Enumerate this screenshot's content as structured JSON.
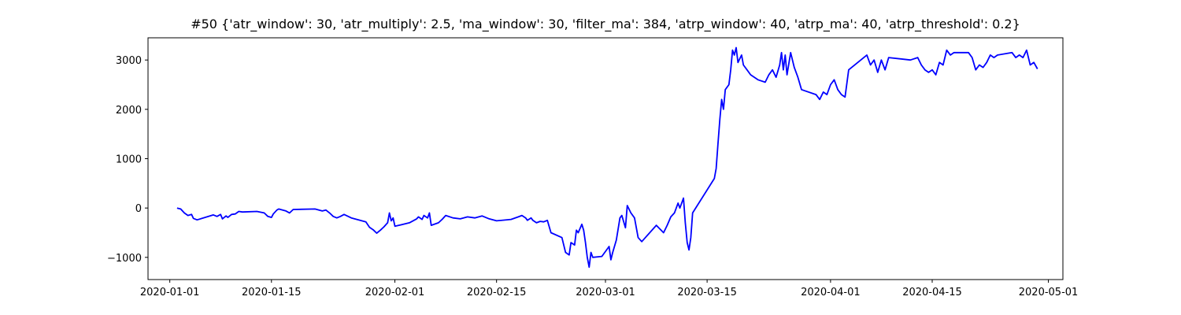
{
  "chart_data": {
    "type": "line",
    "title": "#50 {'atr_window': 30, 'atr_multiply': 2.5, 'ma_window': 30, 'filter_ma': 384, 'atrp_window': 40, 'atrp_ma': 40, 'atrp_threshold': 0.2}",
    "xlabel": "",
    "ylabel": "",
    "x_axis": "date",
    "xlim": [
      "2019-12-29",
      "2020-05-03"
    ],
    "ylim": [
      -1450,
      3450
    ],
    "xticks": [
      "2020-01-01",
      "2020-01-15",
      "2020-02-01",
      "2020-02-15",
      "2020-03-01",
      "2020-03-15",
      "2020-04-01",
      "2020-04-15",
      "2020-05-01"
    ],
    "yticks": [
      -1000,
      0,
      1000,
      2000,
      3000
    ],
    "grid": false,
    "series": [
      {
        "color": "#0000ff",
        "points": [
          [
            "2020-01-02",
            0
          ],
          [
            "2020-01-02T12:00",
            -20
          ],
          [
            "2020-01-03",
            -100
          ],
          [
            "2020-01-03T12:00",
            -150
          ],
          [
            "2020-01-04",
            -130
          ],
          [
            "2020-01-04T06:00",
            -210
          ],
          [
            "2020-01-04T18:00",
            -240
          ],
          [
            "2020-01-07",
            -140
          ],
          [
            "2020-01-07T12:00",
            -170
          ],
          [
            "2020-01-08",
            -130
          ],
          [
            "2020-01-08T06:00",
            -220
          ],
          [
            "2020-01-08T18:00",
            -160
          ],
          [
            "2020-01-09",
            -190
          ],
          [
            "2020-01-09T12:00",
            -130
          ],
          [
            "2020-01-10",
            -120
          ],
          [
            "2020-01-10T12:00",
            -70
          ],
          [
            "2020-01-11",
            -80
          ],
          [
            "2020-01-13",
            -70
          ],
          [
            "2020-01-14",
            -100
          ],
          [
            "2020-01-14T12:00",
            -170
          ],
          [
            "2020-01-15",
            -190
          ],
          [
            "2020-01-15T06:00",
            -120
          ],
          [
            "2020-01-15T18:00",
            -40
          ],
          [
            "2020-01-16",
            -20
          ],
          [
            "2020-01-17",
            -60
          ],
          [
            "2020-01-17T12:00",
            -100
          ],
          [
            "2020-01-18",
            -30
          ],
          [
            "2020-01-21",
            -20
          ],
          [
            "2020-01-22",
            -60
          ],
          [
            "2020-01-22T12:00",
            -40
          ],
          [
            "2020-01-23",
            -100
          ],
          [
            "2020-01-23T12:00",
            -170
          ],
          [
            "2020-01-24",
            -200
          ],
          [
            "2020-01-24T12:00",
            -170
          ],
          [
            "2020-01-25",
            -130
          ],
          [
            "2020-01-26",
            -200
          ],
          [
            "2020-01-28",
            -280
          ],
          [
            "2020-01-28T12:00",
            -390
          ],
          [
            "2020-01-29",
            -440
          ],
          [
            "2020-01-29T12:00",
            -510
          ],
          [
            "2020-01-30",
            -450
          ],
          [
            "2020-01-30T12:00",
            -380
          ],
          [
            "2020-01-31",
            -300
          ],
          [
            "2020-01-31T06:00",
            -100
          ],
          [
            "2020-01-31T12:00",
            -260
          ],
          [
            "2020-01-31T18:00",
            -200
          ],
          [
            "2020-02-01",
            -370
          ],
          [
            "2020-02-03",
            -300
          ],
          [
            "2020-02-04",
            -220
          ],
          [
            "2020-02-04T06:00",
            -180
          ],
          [
            "2020-02-04T18:00",
            -230
          ],
          [
            "2020-02-05",
            -150
          ],
          [
            "2020-02-05T12:00",
            -200
          ],
          [
            "2020-02-05T18:00",
            -100
          ],
          [
            "2020-02-06",
            -350
          ],
          [
            "2020-02-07",
            -300
          ],
          [
            "2020-02-07T12:00",
            -230
          ],
          [
            "2020-02-08",
            -150
          ],
          [
            "2020-02-09",
            -200
          ],
          [
            "2020-02-10",
            -220
          ],
          [
            "2020-02-11",
            -180
          ],
          [
            "2020-02-12",
            -200
          ],
          [
            "2020-02-13",
            -160
          ],
          [
            "2020-02-14",
            -220
          ],
          [
            "2020-02-15",
            -260
          ],
          [
            "2020-02-17",
            -230
          ],
          [
            "2020-02-18",
            -180
          ],
          [
            "2020-02-18T12:00",
            -150
          ],
          [
            "2020-02-19",
            -200
          ],
          [
            "2020-02-19T06:00",
            -250
          ],
          [
            "2020-02-19T18:00",
            -200
          ],
          [
            "2020-02-20",
            -250
          ],
          [
            "2020-02-20T12:00",
            -300
          ],
          [
            "2020-02-21",
            -270
          ],
          [
            "2020-02-21T12:00",
            -280
          ],
          [
            "2020-02-22",
            -250
          ],
          [
            "2020-02-22T12:00",
            -500
          ],
          [
            "2020-02-24",
            -600
          ],
          [
            "2020-02-24T12:00",
            -900
          ],
          [
            "2020-02-25",
            -950
          ],
          [
            "2020-02-25T06:00",
            -700
          ],
          [
            "2020-02-25T18:00",
            -750
          ],
          [
            "2020-02-26",
            -450
          ],
          [
            "2020-02-26T06:00",
            -500
          ],
          [
            "2020-02-26T18:00",
            -330
          ],
          [
            "2020-02-27",
            -450
          ],
          [
            "2020-02-27T06:00",
            -700
          ],
          [
            "2020-02-27T12:00",
            -1000
          ],
          [
            "2020-02-27T18:00",
            -1200
          ],
          [
            "2020-02-28",
            -900
          ],
          [
            "2020-02-28T06:00",
            -1000
          ],
          [
            "2020-02-29T12:00",
            -980
          ],
          [
            "2020-03-01T12:00",
            -780
          ],
          [
            "2020-03-01T18:00",
            -1050
          ],
          [
            "2020-03-02",
            -900
          ],
          [
            "2020-03-02T12:00",
            -650
          ],
          [
            "2020-03-03",
            -200
          ],
          [
            "2020-03-03T06:00",
            -150
          ],
          [
            "2020-03-03T18:00",
            -400
          ],
          [
            "2020-03-04",
            50
          ],
          [
            "2020-03-04T12:00",
            -100
          ],
          [
            "2020-03-05",
            -200
          ],
          [
            "2020-03-05T12:00",
            -600
          ],
          [
            "2020-03-06",
            -680
          ],
          [
            "2020-03-08",
            -350
          ],
          [
            "2020-03-09",
            -500
          ],
          [
            "2020-03-09T12:00",
            -350
          ],
          [
            "2020-03-10",
            -180
          ],
          [
            "2020-03-10T12:00",
            -100
          ],
          [
            "2020-03-11",
            100
          ],
          [
            "2020-03-11T06:00",
            0
          ],
          [
            "2020-03-11T18:00",
            200
          ],
          [
            "2020-03-12",
            -300
          ],
          [
            "2020-03-12T06:00",
            -700
          ],
          [
            "2020-03-12T12:00",
            -850
          ],
          [
            "2020-03-12T18:00",
            -600
          ],
          [
            "2020-03-13",
            -100
          ],
          [
            "2020-03-16",
            600
          ],
          [
            "2020-03-16T06:00",
            800
          ],
          [
            "2020-03-16T12:00",
            1300
          ],
          [
            "2020-03-16T18:00",
            1800
          ],
          [
            "2020-03-17",
            2200
          ],
          [
            "2020-03-17T06:00",
            2000
          ],
          [
            "2020-03-17T12:00",
            2400
          ],
          [
            "2020-03-18",
            2500
          ],
          [
            "2020-03-18T06:00",
            2800
          ],
          [
            "2020-03-18T12:00",
            3200
          ],
          [
            "2020-03-18T18:00",
            3100
          ],
          [
            "2020-03-19",
            3250
          ],
          [
            "2020-03-19T06:00",
            2950
          ],
          [
            "2020-03-19T18:00",
            3100
          ],
          [
            "2020-03-20",
            2900
          ],
          [
            "2020-03-20T12:00",
            2800
          ],
          [
            "2020-03-21",
            2700
          ],
          [
            "2020-03-22",
            2600
          ],
          [
            "2020-03-23",
            2550
          ],
          [
            "2020-03-23T12:00",
            2700
          ],
          [
            "2020-03-24",
            2800
          ],
          [
            "2020-03-24T12:00",
            2650
          ],
          [
            "2020-03-25",
            2900
          ],
          [
            "2020-03-25T06:00",
            3150
          ],
          [
            "2020-03-25T12:00",
            2800
          ],
          [
            "2020-03-25T18:00",
            3100
          ],
          [
            "2020-03-26",
            2700
          ],
          [
            "2020-03-26T12:00",
            3150
          ],
          [
            "2020-03-27",
            2850
          ],
          [
            "2020-03-27T12:00",
            2650
          ],
          [
            "2020-03-28",
            2400
          ],
          [
            "2020-03-30",
            2300
          ],
          [
            "2020-03-30T12:00",
            2200
          ],
          [
            "2020-03-31",
            2350
          ],
          [
            "2020-03-31T12:00",
            2300
          ],
          [
            "2020-04-01",
            2500
          ],
          [
            "2020-04-01T12:00",
            2600
          ],
          [
            "2020-04-02",
            2400
          ],
          [
            "2020-04-02T12:00",
            2300
          ],
          [
            "2020-04-03",
            2250
          ],
          [
            "2020-04-03T12:00",
            2800
          ],
          [
            "2020-04-06",
            3100
          ],
          [
            "2020-04-06T12:00",
            2900
          ],
          [
            "2020-04-07",
            3000
          ],
          [
            "2020-04-07T12:00",
            2750
          ],
          [
            "2020-04-08",
            3000
          ],
          [
            "2020-04-08T12:00",
            2800
          ],
          [
            "2020-04-09",
            3050
          ],
          [
            "2020-04-12",
            3000
          ],
          [
            "2020-04-13",
            3050
          ],
          [
            "2020-04-13T12:00",
            2900
          ],
          [
            "2020-04-14",
            2800
          ],
          [
            "2020-04-14T12:00",
            2750
          ],
          [
            "2020-04-15",
            2800
          ],
          [
            "2020-04-15T12:00",
            2700
          ],
          [
            "2020-04-16",
            2950
          ],
          [
            "2020-04-16T12:00",
            2900
          ],
          [
            "2020-04-17",
            3200
          ],
          [
            "2020-04-17T12:00",
            3100
          ],
          [
            "2020-04-18",
            3150
          ],
          [
            "2020-04-20",
            3150
          ],
          [
            "2020-04-20T12:00",
            3050
          ],
          [
            "2020-04-21",
            2800
          ],
          [
            "2020-04-21T12:00",
            2900
          ],
          [
            "2020-04-22",
            2850
          ],
          [
            "2020-04-22T12:00",
            2950
          ],
          [
            "2020-04-23",
            3100
          ],
          [
            "2020-04-23T12:00",
            3050
          ],
          [
            "2020-04-24",
            3100
          ],
          [
            "2020-04-26",
            3150
          ],
          [
            "2020-04-26T12:00",
            3050
          ],
          [
            "2020-04-27",
            3100
          ],
          [
            "2020-04-27T12:00",
            3050
          ],
          [
            "2020-04-28",
            3200
          ],
          [
            "2020-04-28T12:00",
            2900
          ],
          [
            "2020-04-29",
            2950
          ],
          [
            "2020-04-29T12:00",
            2820
          ]
        ]
      }
    ]
  }
}
